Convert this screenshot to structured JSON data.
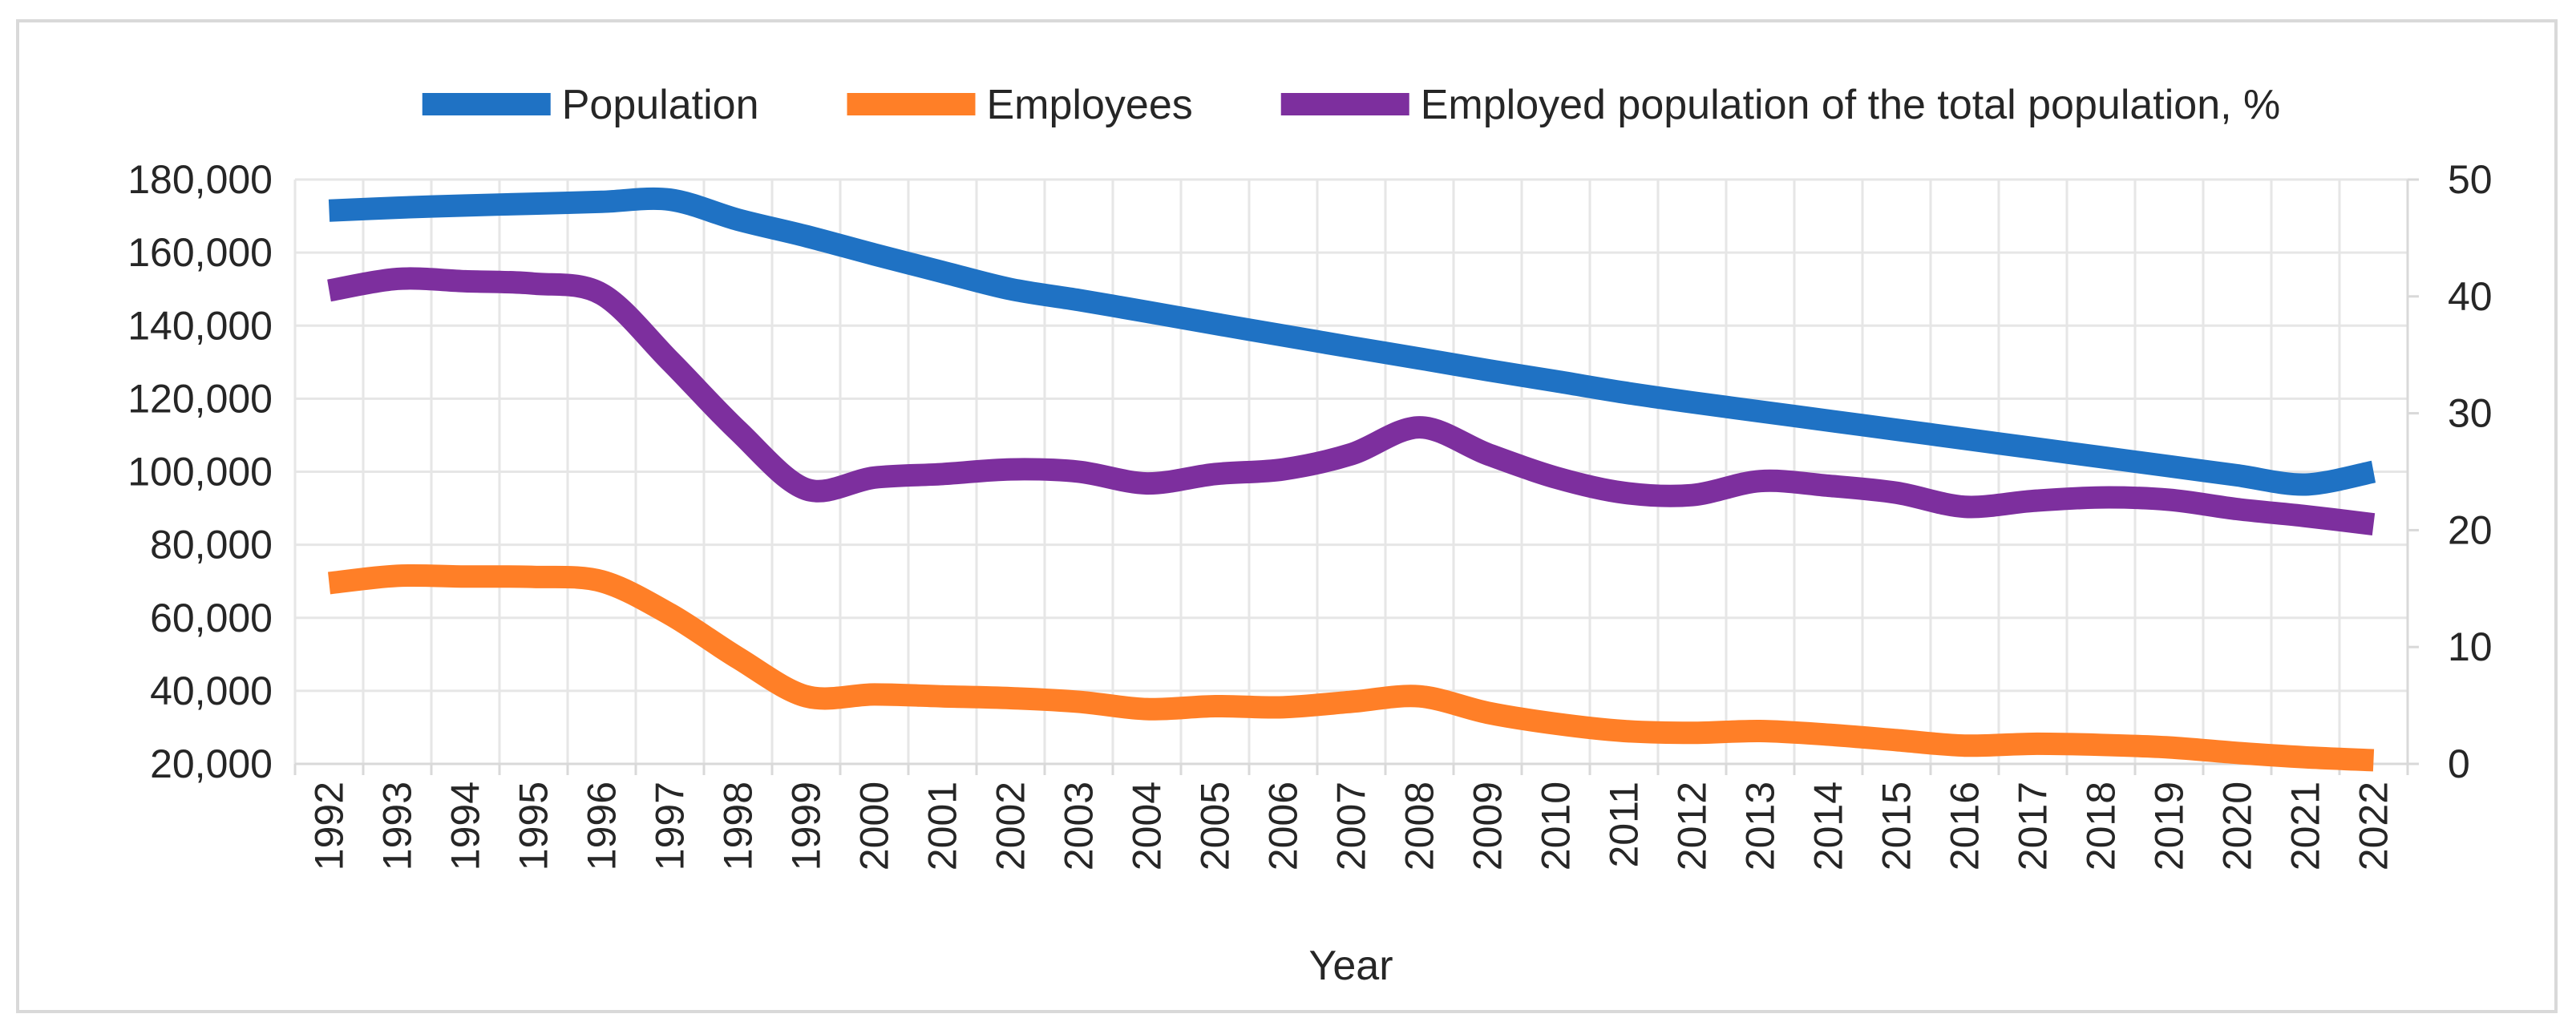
{
  "chart_data": {
    "type": "line",
    "title": "",
    "xlabel": "Year",
    "ylabel_left": "",
    "ylabel_right": "",
    "categories": [
      "1992",
      "1993",
      "1994",
      "1995",
      "1996",
      "1997",
      "1998",
      "1999",
      "2000",
      "2001",
      "2002",
      "2003",
      "2004",
      "2005",
      "2006",
      "2007",
      "2008",
      "2009",
      "2010",
      "2011",
      "2012",
      "2013",
      "2014",
      "2015",
      "2016",
      "2017",
      "2018",
      "2019",
      "2020",
      "2021",
      "2022"
    ],
    "ylim_left": [
      20000,
      180000
    ],
    "ylim_right": [
      0,
      50
    ],
    "yticks_left": [
      20000,
      40000,
      60000,
      80000,
      100000,
      120000,
      140000,
      160000,
      180000
    ],
    "yticks_left_labels": [
      "20,000",
      "40,000",
      "60,000",
      "80,000",
      "100,000",
      "120,000",
      "140,000",
      "160,000",
      "180,000"
    ],
    "yticks_right": [
      0,
      10,
      20,
      30,
      40,
      50
    ],
    "yticks_right_labels": [
      "0",
      "10",
      "20",
      "30",
      "40",
      "50"
    ],
    "grid": true,
    "legend_position": "top",
    "series": [
      {
        "name": "Population",
        "axis": "left",
        "color": "#1f72c4",
        "values": [
          171500,
          172300,
          172900,
          173400,
          173900,
          174500,
          169000,
          164500,
          159500,
          154700,
          150000,
          147000,
          143800,
          140500,
          137300,
          134100,
          131000,
          127800,
          124800,
          121700,
          119000,
          116500,
          114000,
          111500,
          109000,
          106500,
          104000,
          101500,
          99000,
          96500,
          100000
        ]
      },
      {
        "name": "Employees",
        "axis": "left",
        "color": "#ff7f27",
        "values": [
          69500,
          71500,
          71300,
          71200,
          70000,
          61000,
          49000,
          38500,
          39000,
          38500,
          38000,
          37000,
          35000,
          35800,
          35500,
          37000,
          38500,
          34000,
          31000,
          29000,
          28500,
          29000,
          28000,
          26500,
          25000,
          25500,
          25200,
          24500,
          23000,
          21800,
          21000
        ]
      },
      {
        "name": "Employed population of the total population, %",
        "axis": "right",
        "color": "#7d2f9e",
        "values": [
          40.5,
          41.5,
          41.3,
          41.1,
          40.2,
          34.5,
          28.5,
          23.5,
          24.5,
          24.8,
          25.2,
          25.0,
          24.0,
          24.8,
          25.2,
          26.5,
          28.8,
          26.5,
          24.5,
          23.2,
          23.0,
          24.2,
          23.8,
          23.2,
          22.0,
          22.5,
          22.8,
          22.6,
          21.8,
          21.2,
          20.5
        ]
      }
    ]
  }
}
